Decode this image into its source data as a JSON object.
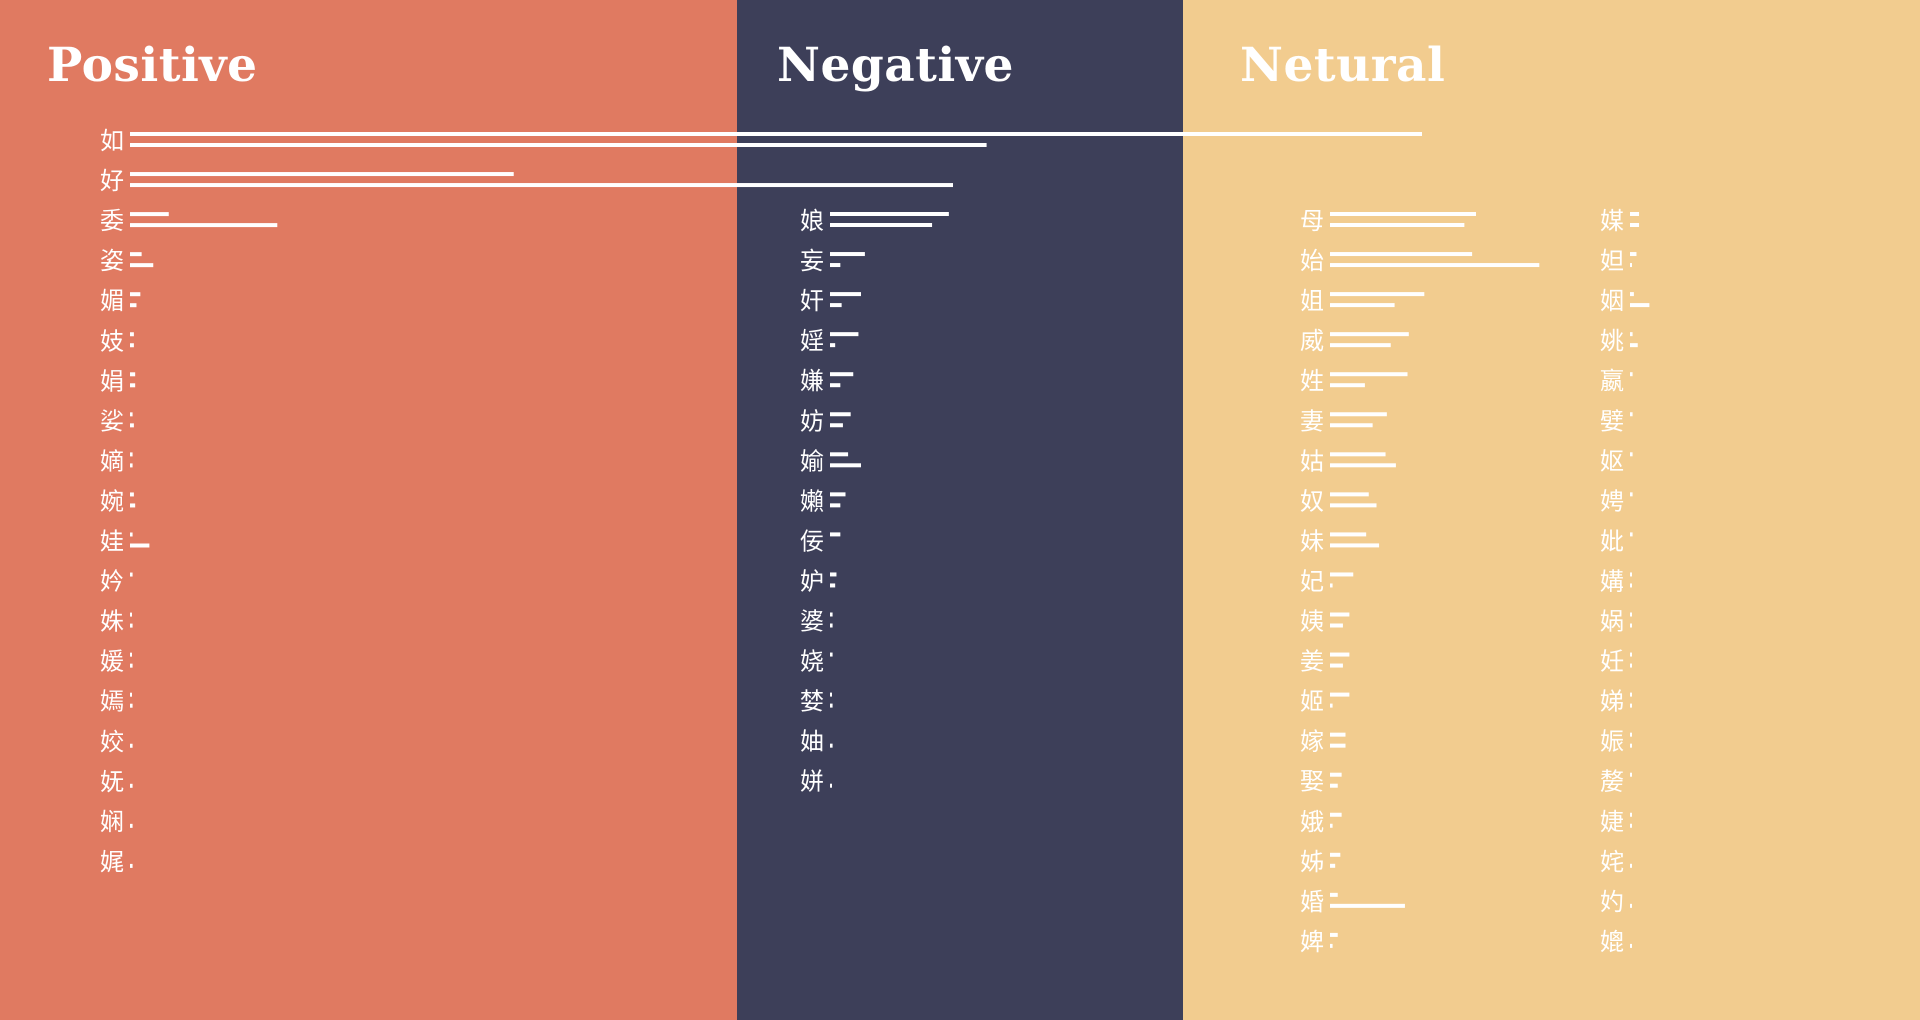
{
  "colors": {
    "positive_bg": "#e07a61",
    "negative_bg": "#3d3f59",
    "neutral_bg": "#f2cc8f",
    "bar": "#ffffff",
    "text": "#ffffff"
  },
  "titles": {
    "positive": "Positive",
    "negative": "Negative",
    "neutral": "Netural"
  },
  "chart_data": {
    "type": "bar",
    "orientation": "horizontal",
    "bars_per_category": 2,
    "value_unit": "relative length, largest bar = 100",
    "groups": [
      {
        "name": "Positive",
        "items": [
          {
            "char": "如",
            "values": [
              100,
              66.3
            ]
          },
          {
            "char": "好",
            "values": [
              29.7,
              63.7
            ]
          },
          {
            "char": "委",
            "values": [
              3.0,
              11.4
            ]
          },
          {
            "char": "姿",
            "values": [
              0.9,
              1.8
            ]
          },
          {
            "char": "媚",
            "values": [
              0.8,
              0.5
            ]
          },
          {
            "char": "妓",
            "values": [
              0.3,
              0.3
            ]
          },
          {
            "char": "娟",
            "values": [
              0.4,
              0.4
            ]
          },
          {
            "char": "娑",
            "values": [
              0.2,
              0.3
            ]
          },
          {
            "char": "嫡",
            "values": [
              0.2,
              0.2
            ]
          },
          {
            "char": "婉",
            "values": [
              0.3,
              0.4
            ]
          },
          {
            "char": "娃",
            "values": [
              0.2,
              1.5
            ]
          },
          {
            "char": "妗",
            "values": [
              0.2,
              0.0
            ]
          },
          {
            "char": "姝",
            "values": [
              0.1,
              0.2
            ]
          },
          {
            "char": "媛",
            "values": [
              0.1,
              0.2
            ]
          },
          {
            "char": "嫣",
            "values": [
              0.1,
              0.2
            ]
          },
          {
            "char": "姣",
            "values": [
              0.0,
              0.2
            ]
          },
          {
            "char": "妩",
            "values": [
              0.0,
              0.2
            ]
          },
          {
            "char": "娴",
            "values": [
              0.0,
              0.2
            ]
          },
          {
            "char": "娓",
            "values": [
              0.0,
              0.2
            ]
          }
        ]
      },
      {
        "name": "Negative",
        "items": [
          {
            "char": "娘",
            "values": [
              9.2,
              7.9
            ]
          },
          {
            "char": "妄",
            "values": [
              2.7,
              0.8
            ]
          },
          {
            "char": "奸",
            "values": [
              2.4,
              0.9
            ]
          },
          {
            "char": "婬",
            "values": [
              2.2,
              0.4
            ]
          },
          {
            "char": "嫌",
            "values": [
              1.8,
              0.8
            ]
          },
          {
            "char": "妨",
            "values": [
              1.6,
              1.0
            ]
          },
          {
            "char": "媮",
            "values": [
              1.4,
              2.4
            ]
          },
          {
            "char": "嬾",
            "values": [
              1.2,
              0.8
            ]
          },
          {
            "char": "佞",
            "values": [
              0.8,
              0.0
            ]
          },
          {
            "char": "妒",
            "values": [
              0.5,
              0.4
            ]
          },
          {
            "char": "婆",
            "values": [
              0.2,
              0.2
            ]
          },
          {
            "char": "娆",
            "values": [
              0.2,
              0.0
            ]
          },
          {
            "char": "婪",
            "values": [
              0.1,
              0.2
            ]
          },
          {
            "char": "妯",
            "values": [
              0.0,
              0.2
            ]
          },
          {
            "char": "姘",
            "values": [
              0.0,
              0.1
            ]
          }
        ]
      },
      {
        "name": "Netural",
        "items": [
          {
            "char": "母",
            "values": [
              11.3,
              10.4
            ]
          },
          {
            "char": "始",
            "values": [
              11.0,
              16.2
            ]
          },
          {
            "char": "姐",
            "values": [
              7.3,
              5.0
            ]
          },
          {
            "char": "威",
            "values": [
              6.1,
              4.7
            ]
          },
          {
            "char": "姓",
            "values": [
              6.0,
              2.7
            ]
          },
          {
            "char": "妻",
            "values": [
              4.4,
              3.3
            ]
          },
          {
            "char": "姑",
            "values": [
              4.3,
              5.1
            ]
          },
          {
            "char": "奴",
            "values": [
              3.0,
              3.6
            ]
          },
          {
            "char": "妹",
            "values": [
              2.8,
              3.8
            ]
          },
          {
            "char": "妃",
            "values": [
              1.8,
              0.2
            ]
          },
          {
            "char": "姨",
            "values": [
              1.5,
              1.0
            ]
          },
          {
            "char": "姜",
            "values": [
              1.5,
              1.0
            ]
          },
          {
            "char": "姬",
            "values": [
              1.5,
              0.2
            ]
          },
          {
            "char": "嫁",
            "values": [
              1.2,
              1.2
            ]
          },
          {
            "char": "娶",
            "values": [
              0.9,
              0.6
            ]
          },
          {
            "char": "娥",
            "values": [
              0.9,
              0.2
            ]
          },
          {
            "char": "姊",
            "values": [
              0.8,
              0.4
            ]
          },
          {
            "char": "婚",
            "values": [
              0.6,
              5.8
            ]
          },
          {
            "char": "婢",
            "values": [
              0.6,
              0.2
            ]
          },
          {
            "char": "媒",
            "values": [
              0.7,
              0.7
            ]
          },
          {
            "char": "妲",
            "values": [
              0.5,
              0.1
            ]
          },
          {
            "char": "姻",
            "values": [
              0.3,
              1.5
            ]
          },
          {
            "char": "姚",
            "values": [
              0.2,
              0.6
            ]
          },
          {
            "char": "嬴",
            "values": [
              0.2,
              0.0
            ]
          },
          {
            "char": "嬖",
            "values": [
              0.2,
              0.0
            ]
          },
          {
            "char": "妪",
            "values": [
              0.2,
              0.0
            ]
          },
          {
            "char": "娉",
            "values": [
              0.2,
              0.0
            ]
          },
          {
            "char": "妣",
            "values": [
              0.2,
              0.0
            ]
          },
          {
            "char": "媾",
            "values": [
              0.1,
              0.1
            ]
          },
          {
            "char": "娲",
            "values": [
              0.1,
              0.1
            ]
          },
          {
            "char": "妊",
            "values": [
              0.1,
              0.1
            ]
          },
          {
            "char": "娣",
            "values": [
              0.1,
              0.1
            ]
          },
          {
            "char": "娠",
            "values": [
              0.1,
              0.1
            ]
          },
          {
            "char": "嫠",
            "values": [
              0.1,
              0.0
            ]
          },
          {
            "char": "婕",
            "values": [
              0.1,
              0.1
            ]
          },
          {
            "char": "姹",
            "values": [
              0.0,
              0.1
            ]
          },
          {
            "char": "妁",
            "values": [
              0.0,
              0.1
            ]
          },
          {
            "char": "媲",
            "values": [
              0.0,
              0.1
            ]
          }
        ]
      }
    ]
  }
}
